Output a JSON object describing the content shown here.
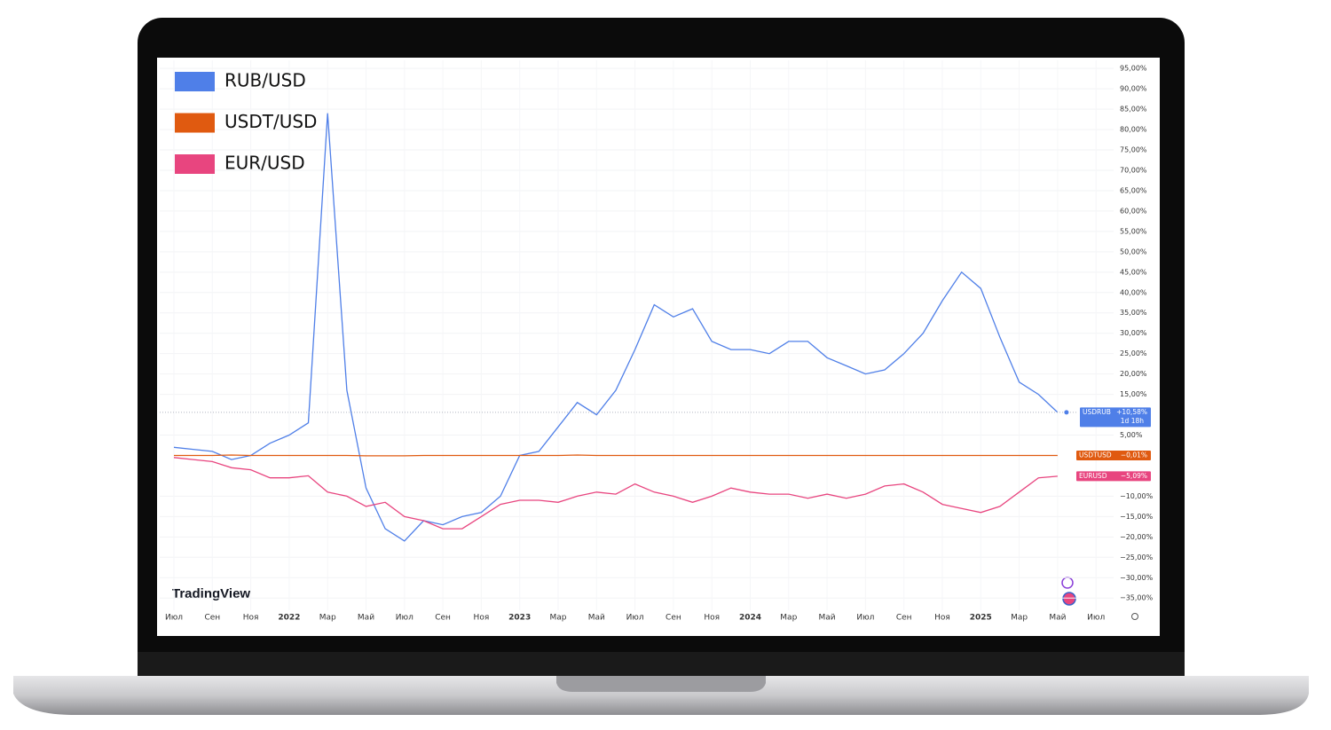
{
  "chart_data": {
    "type": "line",
    "watermark": "TradingView",
    "categories": [
      "Июл",
      null,
      "Сен",
      null,
      "Ноя",
      null,
      "2022",
      null,
      "Мар",
      null,
      "Май",
      null,
      "Июл",
      null,
      "Сен",
      null,
      "Ноя",
      null,
      "2023",
      null,
      "Мар",
      null,
      "Май",
      null,
      "Июл",
      null,
      "Сен",
      null,
      "Ноя",
      null,
      "2024",
      null,
      "Мар",
      null,
      "Май",
      null,
      "Июл",
      null,
      "Сен",
      null,
      "Ноя",
      null,
      "2025",
      null,
      "Мар",
      null,
      "Май",
      null,
      "Июл"
    ],
    "series": [
      {
        "name": "RUB/USD",
        "ticker": "USDRUB",
        "countdown": "1d 18h",
        "color": "#4f7fe8",
        "values": [
          2,
          1.5,
          1,
          -1,
          0,
          3,
          5,
          8,
          84,
          16,
          -8,
          -18,
          -21,
          -16,
          -17,
          -15,
          -14,
          -10,
          0,
          1,
          7,
          13,
          10,
          16,
          26,
          37,
          34,
          36,
          28,
          26,
          26,
          25,
          28,
          28,
          24,
          22,
          20,
          21,
          25,
          30,
          38,
          45,
          41,
          29,
          18,
          15,
          10.58,
          null,
          null
        ],
        "value_labels": [
          null,
          null,
          null,
          null,
          null,
          null,
          null,
          null,
          null,
          null,
          null,
          null,
          null,
          null,
          null,
          null,
          null,
          null,
          null,
          null,
          null,
          null,
          null,
          null,
          null,
          null,
          null,
          null,
          null,
          null,
          null,
          null,
          null,
          null,
          null,
          null,
          null,
          null,
          null,
          null,
          null,
          null,
          null,
          null,
          null,
          null,
          "+10,58%",
          null,
          null
        ]
      },
      {
        "name": "USDT/USD",
        "ticker": "USDTUSD",
        "color": "#e05a10",
        "values": [
          0,
          0,
          0,
          0.1,
          0,
          0,
          0,
          0,
          0,
          0,
          -0.1,
          -0.1,
          -0.1,
          0,
          0,
          0,
          0,
          0,
          0,
          0,
          0,
          0.1,
          0,
          0,
          0,
          0,
          0,
          0,
          0,
          0,
          0,
          0,
          0,
          0,
          0,
          0,
          0,
          0,
          0,
          0,
          0,
          0,
          0,
          0,
          0,
          0,
          -0.01,
          null,
          null
        ],
        "value_labels": [
          null,
          null,
          null,
          null,
          null,
          null,
          null,
          null,
          null,
          null,
          null,
          null,
          null,
          null,
          null,
          null,
          null,
          null,
          null,
          null,
          null,
          null,
          null,
          null,
          null,
          null,
          null,
          null,
          null,
          null,
          null,
          null,
          null,
          null,
          null,
          null,
          null,
          null,
          null,
          null,
          null,
          null,
          null,
          null,
          null,
          null,
          "−0,01%",
          null,
          null
        ]
      },
      {
        "name": "EUR/USD",
        "ticker": "EURUSD",
        "color": "#e8457f",
        "values": [
          -0.5,
          -1,
          -1.5,
          -3,
          -3.5,
          -5.5,
          -5.5,
          -5,
          -9,
          -10,
          -12.5,
          -11.5,
          -15,
          -16,
          -18,
          -18,
          -15,
          -12,
          -11,
          -11,
          -11.5,
          -10,
          -9,
          -9.5,
          -7,
          -9,
          -10,
          -11.5,
          -10,
          -8,
          -9,
          -9.5,
          -9.5,
          -10.5,
          -9.5,
          -10.5,
          -9.5,
          -7.5,
          -7,
          -9,
          -12,
          -13,
          -14,
          -12.5,
          -9,
          -5.5,
          -5.09,
          null,
          null
        ],
        "value_labels": [
          null,
          null,
          null,
          null,
          null,
          null,
          null,
          null,
          null,
          null,
          null,
          null,
          null,
          null,
          null,
          null,
          null,
          null,
          null,
          null,
          null,
          null,
          null,
          null,
          null,
          null,
          null,
          null,
          null,
          null,
          null,
          null,
          null,
          null,
          null,
          null,
          null,
          null,
          null,
          null,
          null,
          null,
          null,
          null,
          null,
          null,
          "−5,09%",
          null,
          null
        ]
      }
    ],
    "ylim": [
      -38,
      97
    ],
    "yticks": [
      {
        "value": 95,
        "label": "95,00%"
      },
      {
        "value": 90,
        "label": "90,00%"
      },
      {
        "value": 85,
        "label": "85,00%"
      },
      {
        "value": 80,
        "label": "80,00%"
      },
      {
        "value": 75,
        "label": "75,00%"
      },
      {
        "value": 70,
        "label": "70,00%"
      },
      {
        "value": 65,
        "label": "65,00%"
      },
      {
        "value": 60,
        "label": "60,00%"
      },
      {
        "value": 55,
        "label": "55,00%"
      },
      {
        "value": 50,
        "label": "50,00%"
      },
      {
        "value": 45,
        "label": "45,00%"
      },
      {
        "value": 40,
        "label": "40,00%"
      },
      {
        "value": 35,
        "label": "35,00%"
      },
      {
        "value": 30,
        "label": "30,00%"
      },
      {
        "value": 25,
        "label": "25,00%"
      },
      {
        "value": 20,
        "label": "20,00%"
      },
      {
        "value": 15,
        "label": "15,00%"
      },
      {
        "value": 5,
        "label": "5,00%"
      },
      {
        "value": -10,
        "label": "−10,00%"
      },
      {
        "value": -15,
        "label": "−15,00%"
      },
      {
        "value": -20,
        "label": "−20,00%"
      },
      {
        "value": -25,
        "label": "−25,00%"
      },
      {
        "value": -30,
        "label": "−30,00%"
      },
      {
        "value": -35,
        "label": "−35,00%"
      }
    ],
    "grid": true
  }
}
